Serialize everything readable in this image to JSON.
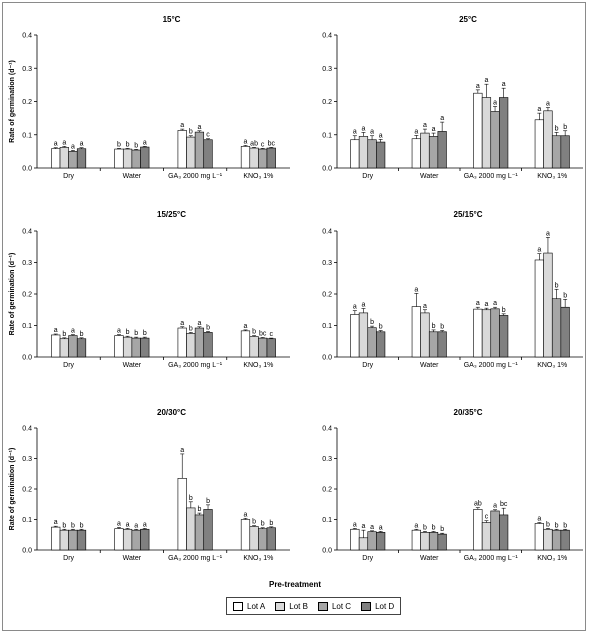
{
  "chart_data": [
    {
      "type": "bar",
      "title": "15°C",
      "ylabel": "Rate of germination (d⁻¹)",
      "ylim": [
        0,
        0.4
      ],
      "yticks": [
        "0.0",
        "0.1",
        "0.2",
        "0.3",
        "0.4"
      ],
      "categories": [
        "Dry",
        "Water",
        "GA₃ 2000 mg L⁻¹",
        "KNO₃ 1%"
      ],
      "series": [
        {
          "name": "Lot A",
          "values": [
            0.058,
            0.057,
            0.113,
            0.065
          ],
          "errors": [
            0.003,
            0.002,
            0.004,
            0.003
          ],
          "letters": [
            "a",
            "b",
            "a",
            "a"
          ]
        },
        {
          "name": "Lot B",
          "values": [
            0.062,
            0.057,
            0.093,
            0.06
          ],
          "errors": [
            0.003,
            0.002,
            0.004,
            0.002
          ],
          "letters": [
            "a",
            "b",
            "b",
            "ab"
          ]
        },
        {
          "name": "Lot C",
          "values": [
            0.05,
            0.054,
            0.108,
            0.057
          ],
          "errors": [
            0.003,
            0.002,
            0.004,
            0.002
          ],
          "letters": [
            "a",
            "b",
            "a",
            "c"
          ]
        },
        {
          "name": "Lot D",
          "values": [
            0.058,
            0.063,
            0.085,
            0.06
          ],
          "errors": [
            0.003,
            0.002,
            0.003,
            0.002
          ],
          "letters": [
            "a",
            "a",
            "c",
            "bc"
          ]
        }
      ]
    },
    {
      "type": "bar",
      "title": "25°C",
      "ylabel": "",
      "ylim": [
        0,
        0.4
      ],
      "yticks": [
        "0.0",
        "0.1",
        "0.2",
        "0.3",
        "0.4"
      ],
      "categories": [
        "Dry",
        "Water",
        "GA₃ 2000 mg L⁻¹",
        "KNO₃ 1%"
      ],
      "series": [
        {
          "name": "Lot A",
          "values": [
            0.085,
            0.088,
            0.225,
            0.145
          ],
          "errors": [
            0.012,
            0.01,
            0.01,
            0.02
          ],
          "letters": [
            "a",
            "a",
            "a",
            "a"
          ]
        },
        {
          "name": "Lot B",
          "values": [
            0.095,
            0.105,
            0.212,
            0.172
          ],
          "errors": [
            0.012,
            0.012,
            0.04,
            0.01
          ],
          "letters": [
            "a",
            "a",
            "a",
            "a"
          ]
        },
        {
          "name": "Lot C",
          "values": [
            0.085,
            0.095,
            0.17,
            0.097
          ],
          "errors": [
            0.012,
            0.01,
            0.015,
            0.01
          ],
          "letters": [
            "a",
            "a",
            "a",
            "b"
          ]
        },
        {
          "name": "Lot D",
          "values": [
            0.078,
            0.11,
            0.212,
            0.097
          ],
          "errors": [
            0.008,
            0.028,
            0.028,
            0.015
          ],
          "letters": [
            "a",
            "a",
            "a",
            "b"
          ]
        }
      ]
    },
    {
      "type": "bar",
      "title": "15/25°C",
      "ylabel": "Rate of germination (d⁻¹)",
      "ylim": [
        0,
        0.4
      ],
      "yticks": [
        "0.0",
        "0.1",
        "0.2",
        "0.3",
        "0.4"
      ],
      "categories": [
        "Dry",
        "Water",
        "GA₃ 2000 mg L⁻¹",
        "KNO₃ 1%"
      ],
      "series": [
        {
          "name": "Lot A",
          "values": [
            0.07,
            0.068,
            0.092,
            0.083
          ],
          "errors": [
            0.003,
            0.003,
            0.004,
            0.003
          ],
          "letters": [
            "a",
            "a",
            "a",
            "a"
          ]
        },
        {
          "name": "Lot B",
          "values": [
            0.058,
            0.063,
            0.075,
            0.065
          ],
          "errors": [
            0.003,
            0.003,
            0.003,
            0.003
          ],
          "letters": [
            "b",
            "b",
            "b",
            "b"
          ]
        },
        {
          "name": "Lot C",
          "values": [
            0.068,
            0.06,
            0.092,
            0.06
          ],
          "errors": [
            0.003,
            0.003,
            0.004,
            0.002
          ],
          "letters": [
            "a",
            "b",
            "a",
            "bc"
          ]
        },
        {
          "name": "Lot D",
          "values": [
            0.058,
            0.06,
            0.078,
            0.058
          ],
          "errors": [
            0.003,
            0.003,
            0.003,
            0.002
          ],
          "letters": [
            "b",
            "b",
            "b",
            "c"
          ]
        }
      ]
    },
    {
      "type": "bar",
      "title": "25/15°C",
      "ylabel": "",
      "ylim": [
        0,
        0.4
      ],
      "yticks": [
        "0.0",
        "0.1",
        "0.2",
        "0.3",
        "0.4"
      ],
      "categories": [
        "Dry",
        "Water",
        "GA₃ 2000 mg L⁻¹",
        "KNO₃ 1%"
      ],
      "series": [
        {
          "name": "Lot A",
          "values": [
            0.135,
            0.16,
            0.152,
            0.308
          ],
          "errors": [
            0.012,
            0.042,
            0.006,
            0.02
          ],
          "letters": [
            "a",
            "a",
            "a",
            "a"
          ]
        },
        {
          "name": "Lot B",
          "values": [
            0.14,
            0.14,
            0.15,
            0.33
          ],
          "errors": [
            0.014,
            0.01,
            0.005,
            0.05
          ],
          "letters": [
            "a",
            "a",
            "a",
            "a"
          ]
        },
        {
          "name": "Lot C",
          "values": [
            0.093,
            0.08,
            0.153,
            0.185
          ],
          "errors": [
            0.005,
            0.006,
            0.005,
            0.03
          ],
          "letters": [
            "b",
            "b",
            "a",
            "b"
          ]
        },
        {
          "name": "Lot D",
          "values": [
            0.08,
            0.08,
            0.132,
            0.158
          ],
          "errors": [
            0.004,
            0.004,
            0.005,
            0.025
          ],
          "letters": [
            "b",
            "b",
            "b",
            "b"
          ]
        }
      ]
    },
    {
      "type": "bar",
      "title": "20/30°C",
      "ylabel": "Rate of germination (d⁻¹)",
      "ylim": [
        0,
        0.4
      ],
      "yticks": [
        "0.0",
        "0.1",
        "0.2",
        "0.3",
        "0.4"
      ],
      "categories": [
        "Dry",
        "Water",
        "GA₃ 2000 mg L⁻¹",
        "KNO₃ 1%"
      ],
      "series": [
        {
          "name": "Lot A",
          "values": [
            0.075,
            0.07,
            0.235,
            0.1
          ],
          "errors": [
            0.003,
            0.004,
            0.08,
            0.004
          ],
          "letters": [
            "a",
            "a",
            "a",
            "a"
          ]
        },
        {
          "name": "Lot B",
          "values": [
            0.065,
            0.068,
            0.138,
            0.077
          ],
          "errors": [
            0.003,
            0.003,
            0.02,
            0.003
          ],
          "letters": [
            "b",
            "a",
            "b",
            "b"
          ]
        },
        {
          "name": "Lot C",
          "values": [
            0.065,
            0.065,
            0.115,
            0.07
          ],
          "errors": [
            0.003,
            0.003,
            0.006,
            0.003
          ],
          "letters": [
            "b",
            "a",
            "b",
            "b"
          ]
        },
        {
          "name": "Lot D",
          "values": [
            0.065,
            0.068,
            0.133,
            0.073
          ],
          "errors": [
            0.003,
            0.003,
            0.015,
            0.003
          ],
          "letters": [
            "b",
            "a",
            "b",
            "b"
          ]
        }
      ]
    },
    {
      "type": "bar",
      "title": "20/35°C",
      "ylabel": "",
      "ylim": [
        0,
        0.4
      ],
      "yticks": [
        "0.0",
        "0.1",
        "0.2",
        "0.3",
        "0.4"
      ],
      "categories": [
        "Dry",
        "Water",
        "GA₃ 2000 mg L⁻¹",
        "KNO₃ 1%"
      ],
      "series": [
        {
          "name": "Lot A",
          "values": [
            0.068,
            0.065,
            0.133,
            0.087
          ],
          "errors": [
            0.003,
            0.003,
            0.006,
            0.003
          ],
          "letters": [
            "a",
            "a",
            "ab",
            "a"
          ]
        },
        {
          "name": "Lot B",
          "values": [
            0.04,
            0.058,
            0.09,
            0.068
          ],
          "errors": [
            0.025,
            0.003,
            0.006,
            0.003
          ],
          "letters": [
            "a",
            "b",
            "c",
            "b"
          ]
        },
        {
          "name": "Lot C",
          "values": [
            0.06,
            0.058,
            0.128,
            0.065
          ],
          "errors": [
            0.003,
            0.003,
            0.004,
            0.003
          ],
          "letters": [
            "a",
            "b",
            "a",
            "b"
          ]
        },
        {
          "name": "Lot D",
          "values": [
            0.058,
            0.052,
            0.115,
            0.065
          ],
          "errors": [
            0.003,
            0.003,
            0.022,
            0.003
          ],
          "letters": [
            "a",
            "b",
            "bc",
            "b"
          ]
        }
      ]
    }
  ],
  "shared": {
    "xlabel": "Pre-treatment",
    "legend": [
      {
        "name": "Lot A",
        "color": "#ffffff"
      },
      {
        "name": "Lot B",
        "color": "#d9d9d9"
      },
      {
        "name": "Lot C",
        "color": "#a6a6a6"
      },
      {
        "name": "Lot D",
        "color": "#808080"
      }
    ]
  }
}
